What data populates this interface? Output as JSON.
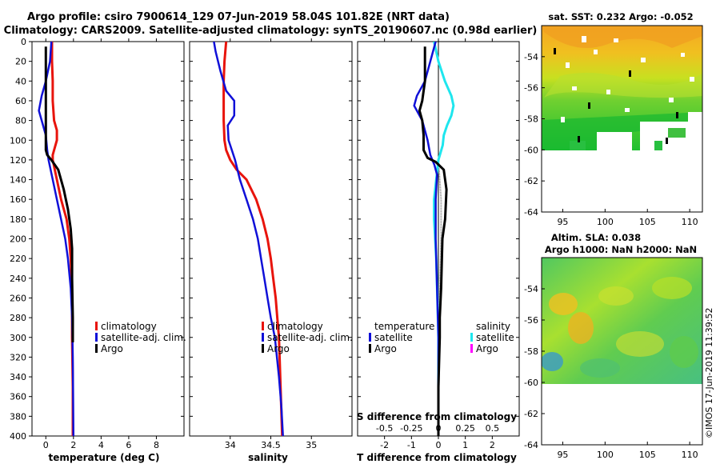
{
  "header": {
    "title_line1": "Argo profile: csiro 7900614_129 07-Jun-2019 58.04S 101.82E (NRT data)",
    "title_line2": "Climatology: CARS2009. Satellite-adjusted climatology: synTS_20190607.nc (0.98d earlier)"
  },
  "colors": {
    "climatology": "#e8140c",
    "satellite": "#1010d8",
    "argo": "#000000",
    "sal_satellite": "#1ee6ee",
    "sal_argo": "#ff00ff"
  },
  "chart_data": [
    {
      "type": "line",
      "name": "temperature-panel",
      "xlabel": "temperature (deg C)",
      "ylabel": "",
      "xlim": [
        -1,
        10
      ],
      "ylim": [
        400,
        0
      ],
      "xticks": [
        "0",
        "2",
        "4",
        "6",
        "8"
      ],
      "xtick_values": [
        0,
        2,
        4,
        6,
        8
      ],
      "yticks": [
        "0",
        "20",
        "40",
        "60",
        "80",
        "100",
        "120",
        "140",
        "160",
        "180",
        "200",
        "220",
        "240",
        "260",
        "280",
        "300",
        "320",
        "340",
        "360",
        "380",
        "400"
      ],
      "ytick_values": [
        0,
        20,
        40,
        60,
        80,
        100,
        120,
        140,
        160,
        180,
        200,
        220,
        240,
        260,
        280,
        300,
        320,
        340,
        360,
        380,
        400
      ],
      "legend": [
        "climatology",
        "satellite-adj. clim.",
        "Argo"
      ],
      "series": [
        {
          "name": "climatology",
          "x": [
            0.45,
            0.45,
            0.5,
            0.5,
            0.6,
            0.8,
            0.8,
            0.6,
            0.5,
            0.5,
            0.8,
            1.1,
            1.5,
            1.7,
            1.8,
            1.9,
            1.9,
            1.95,
            1.95
          ],
          "y": [
            0,
            20,
            40,
            60,
            80,
            90,
            100,
            110,
            115,
            120,
            140,
            160,
            180,
            200,
            220,
            260,
            300,
            350,
            400
          ]
        },
        {
          "name": "satellite-adj. clim.",
          "x": [
            0.4,
            0.3,
            0.0,
            -0.3,
            -0.5,
            -0.3,
            0.0,
            0.1,
            0.2,
            0.5,
            0.8,
            1.1,
            1.4,
            1.6,
            1.8,
            1.9,
            1.95,
            2.0
          ],
          "y": [
            0,
            20,
            40,
            55,
            70,
            80,
            95,
            110,
            120,
            140,
            160,
            180,
            200,
            220,
            250,
            280,
            320,
            400
          ]
        },
        {
          "name": "Argo",
          "x": [
            0.0,
            0.0,
            0.0,
            0.0,
            0.0,
            0.0,
            0.0,
            0.1,
            0.4,
            0.9,
            1.3,
            1.6,
            1.8,
            1.9,
            1.9,
            1.95,
            1.95
          ],
          "y": [
            5,
            20,
            40,
            60,
            80,
            100,
            110,
            115,
            120,
            130,
            150,
            170,
            190,
            210,
            240,
            280,
            305
          ]
        }
      ]
    },
    {
      "type": "line",
      "name": "salinity-panel",
      "xlabel": "salinity",
      "xlim": [
        33.5,
        35.5
      ],
      "ylim": [
        400,
        0
      ],
      "xticks": [
        "34",
        "34.5",
        "35"
      ],
      "xtick_values": [
        34,
        34.5,
        35
      ],
      "legend": [
        "climatology",
        "satellite-adj. clim.",
        "Argo"
      ],
      "series": [
        {
          "name": "climatology",
          "x": [
            33.95,
            33.93,
            33.92,
            33.92,
            33.92,
            33.93,
            33.95,
            34.0,
            34.08,
            34.2,
            34.32,
            34.4,
            34.46,
            34.5,
            34.53,
            34.56,
            34.58,
            34.6,
            34.62,
            34.64
          ],
          "y": [
            0,
            20,
            40,
            60,
            80,
            100,
            110,
            120,
            130,
            140,
            160,
            180,
            200,
            220,
            240,
            260,
            280,
            300,
            350,
            400
          ]
        },
        {
          "name": "satellite-adj. clim.",
          "x": [
            33.8,
            33.82,
            33.88,
            33.95,
            34.05,
            34.05,
            33.97,
            33.98,
            34.02,
            34.06,
            34.12,
            34.2,
            34.28,
            34.34,
            34.38,
            34.42,
            34.46,
            34.5,
            34.55,
            34.6,
            34.63,
            34.65
          ],
          "y": [
            0,
            10,
            30,
            50,
            60,
            75,
            85,
            100,
            110,
            120,
            140,
            160,
            180,
            200,
            220,
            240,
            260,
            280,
            300,
            340,
            370,
            400
          ]
        }
      ]
    },
    {
      "type": "line",
      "name": "difference-panel",
      "xlabel": "T difference from climatology",
      "secondary_xlabel": "S difference from climatology",
      "xlim": [
        -3,
        3
      ],
      "ylim": [
        400,
        0
      ],
      "xticks": [
        "-2",
        "-1",
        "0",
        "1",
        "2"
      ],
      "xtick_values": [
        -2,
        -1,
        0,
        1,
        2
      ],
      "s_xticks": [
        "-0.5",
        "-0.25",
        "0",
        "0.25",
        "0.5"
      ],
      "s_xtick_values": [
        -0.5,
        -0.25,
        0,
        0.25,
        0.5
      ],
      "s_xlim": [
        -0.75,
        0.75
      ],
      "legend_temperature_header": "temperature",
      "legend_salinity_header": "salinity",
      "legend_temperature": [
        "satellite",
        "Argo"
      ],
      "legend_salinity": [
        "satellite",
        "Argo"
      ],
      "series": [
        {
          "name": "T satellite",
          "axis": "T",
          "x": [
            -0.1,
            -0.3,
            -0.5,
            -0.8,
            -0.9,
            -0.6,
            -0.4,
            -0.3,
            -0.15,
            -0.05,
            -0.1,
            -0.1,
            -0.05,
            0.0,
            0.0,
            0.0,
            0.0
          ],
          "y": [
            0,
            20,
            40,
            55,
            65,
            80,
            100,
            115,
            125,
            135,
            160,
            200,
            250,
            300,
            340,
            380,
            400
          ]
        },
        {
          "name": "T Argo",
          "axis": "T",
          "x": [
            -0.5,
            -0.5,
            -0.5,
            -0.6,
            -0.7,
            -0.6,
            -0.55,
            -0.55,
            -0.55,
            -0.4,
            -0.1,
            0.2,
            0.3,
            0.25,
            0.15,
            0.1,
            0.05,
            0.05,
            0.0,
            0.0
          ],
          "y": [
            5,
            20,
            40,
            60,
            70,
            80,
            95,
            105,
            110,
            118,
            122,
            130,
            150,
            180,
            200,
            250,
            280,
            300,
            350,
            400
          ]
        },
        {
          "name": "S satellite",
          "axis": "S",
          "x": [
            -0.04,
            0.0,
            0.06,
            0.12,
            0.14,
            0.12,
            0.08,
            0.05,
            0.04,
            0.0,
            -0.02,
            -0.04,
            -0.04,
            -0.02,
            -0.01,
            0.0,
            0.0,
            0.0
          ],
          "y": [
            0,
            20,
            40,
            55,
            65,
            75,
            85,
            95,
            105,
            120,
            140,
            160,
            180,
            220,
            260,
            300,
            350,
            400
          ]
        },
        {
          "name": "T difference grey",
          "axis": "T",
          "x": [
            0.0,
            0.05,
            0.1,
            0.1,
            0.05,
            0.0
          ],
          "y": [
            120,
            140,
            160,
            200,
            260,
            400
          ]
        }
      ]
    },
    {
      "type": "heatmap",
      "name": "sst-map",
      "title": "sat. SST: 0.232 Argo: -0.052",
      "xlim": [
        92.5,
        111.5
      ],
      "ylim": [
        -64,
        -52
      ],
      "xticks": [
        "95",
        "100",
        "105",
        "110"
      ],
      "xtick_values": [
        95,
        100,
        105,
        110
      ],
      "yticks": [
        "-54",
        "-56",
        "-58",
        "-60",
        "-62",
        "-64"
      ],
      "ytick_values": [
        -54,
        -56,
        -58,
        -60,
        -62,
        -64
      ]
    },
    {
      "type": "heatmap",
      "name": "sla-map",
      "title_line1": "Altim. SLA: 0.038",
      "title_line2": "Argo h1000: NaN h2000: NaN",
      "xlim": [
        92.5,
        111.5
      ],
      "ylim": [
        -64,
        -52
      ],
      "xticks": [
        "95",
        "100",
        "105",
        "110"
      ],
      "xtick_values": [
        95,
        100,
        105,
        110
      ],
      "yticks": [
        "-54",
        "-56",
        "-58",
        "-60",
        "-62",
        "-64"
      ],
      "ytick_values": [
        -54,
        -56,
        -58,
        -60,
        -62,
        -64
      ]
    }
  ],
  "footer": {
    "credit": "©IMOS 17-Jun-2019 11:39:52"
  }
}
